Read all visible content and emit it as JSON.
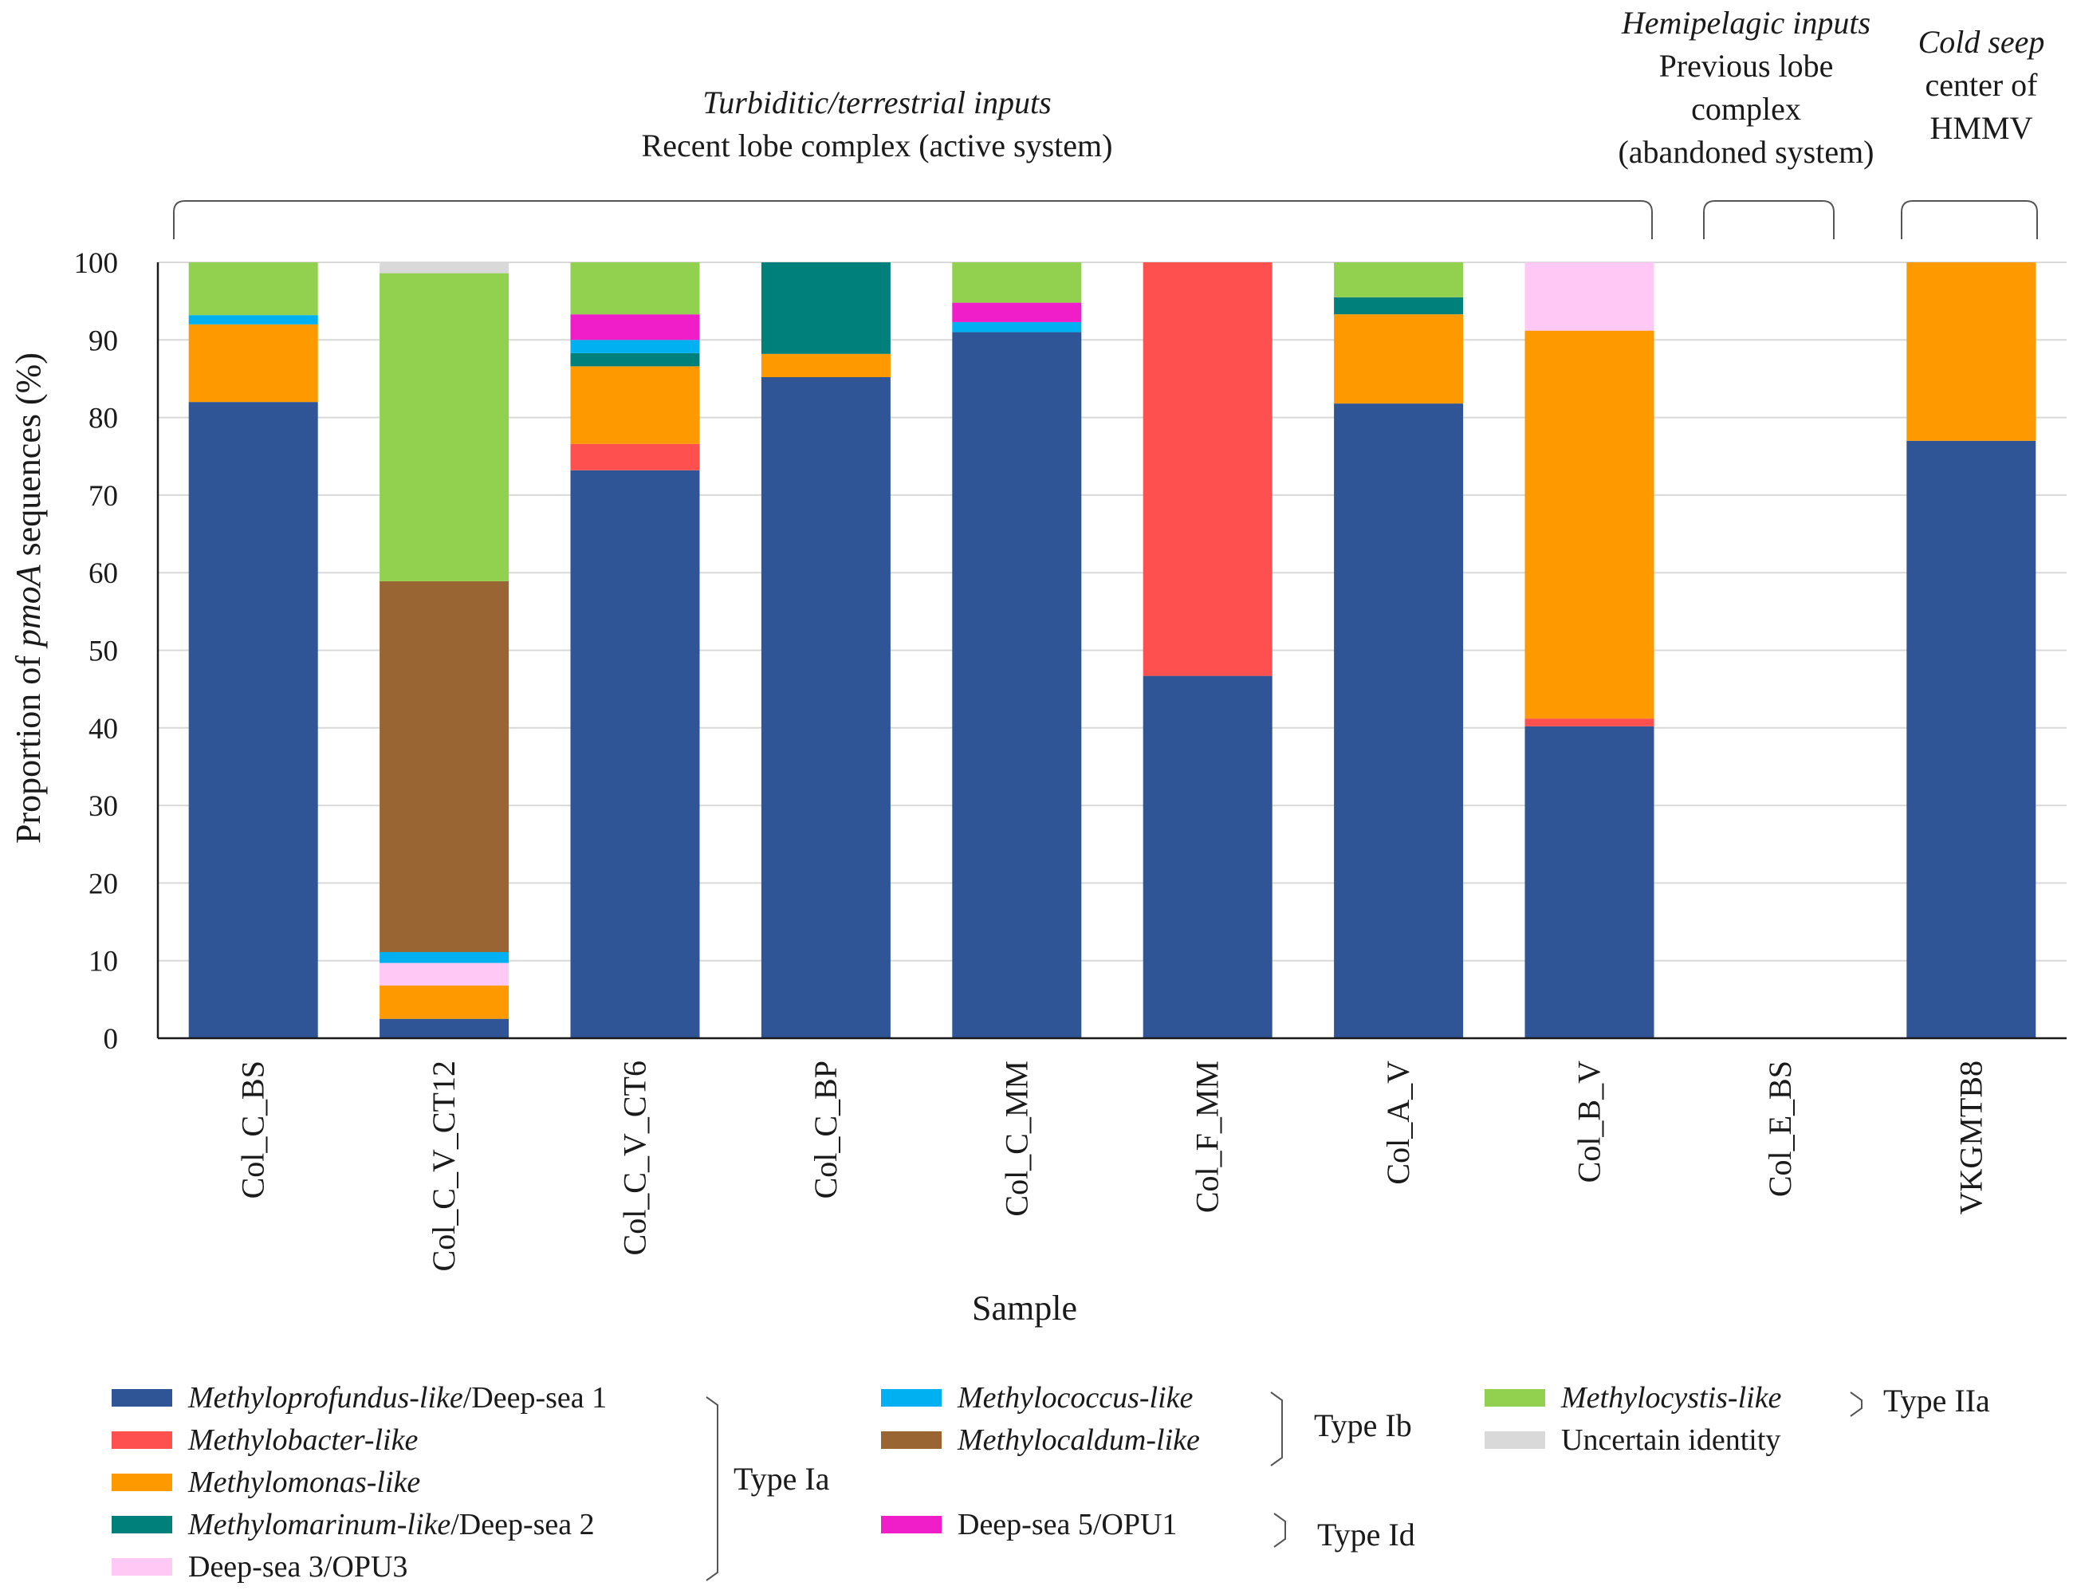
{
  "chart_data": {
    "type": "bar",
    "stacked": true,
    "xlabel": "Sample",
    "ylabel_prefix": "Proportion of ",
    "ylabel_italic": "pmoA",
    "ylabel_suffix": " sequences (%)",
    "ylim": [
      0,
      100
    ],
    "yticks": [
      0,
      10,
      20,
      30,
      40,
      50,
      60,
      70,
      80,
      90,
      100
    ],
    "grid": true,
    "categories": [
      "Col_C_BS",
      "Col_C_V_CT12",
      "Col_C_V_CT6",
      "Col_C_BP",
      "Col_C_MM",
      "Col_F_MM",
      "Col_A_V",
      "Col_B_V",
      "Col_E_BS",
      "VKGMTB8"
    ],
    "series": [
      {
        "name": "Methyloprofundus-like/Deep-sea 1",
        "italic": "Methyloprofundus-like",
        "rest": "/Deep-sea 1",
        "color": "#2f5597",
        "values": [
          82,
          2.5,
          73.2,
          85.2,
          91,
          46.7,
          81.8,
          40.2,
          0,
          77
        ]
      },
      {
        "name": "Methylobacter-like",
        "italic": "Methylobacter-like",
        "rest": "",
        "color": "#ff5050",
        "values": [
          0,
          0,
          3.4,
          0,
          0,
          53.3,
          0,
          1,
          0,
          0
        ]
      },
      {
        "name": "Methylomonas-like",
        "italic": "Methylomonas-like",
        "rest": "",
        "color": "#ff9900",
        "values": [
          10,
          4.3,
          10,
          3,
          0,
          0,
          11.5,
          50,
          0,
          23
        ]
      },
      {
        "name": "Methylomarinum-like/Deep-sea 2",
        "italic": "Methylomarinum-like",
        "rest": "/Deep-sea 2",
        "color": "#00807a",
        "values": [
          0,
          0,
          1.7,
          11.8,
          0,
          0,
          2.2,
          0,
          0,
          0
        ]
      },
      {
        "name": "Deep-sea 3/OPU3",
        "italic": "",
        "rest": "Deep-sea 3/OPU3",
        "color": "#ffc8f5",
        "values": [
          0,
          2.9,
          0,
          0,
          0,
          0,
          0,
          8.8,
          0,
          0
        ]
      },
      {
        "name": "Methylococcus-like",
        "italic": "Methylococcus-like",
        "rest": "",
        "color": "#00b0f0",
        "values": [
          1.2,
          1.4,
          1.7,
          0,
          1.3,
          0,
          0,
          0,
          0,
          0
        ]
      },
      {
        "name": "Methylocaldum-like",
        "italic": "Methylocaldum-like",
        "rest": "",
        "color": "#996633",
        "values": [
          0,
          47.8,
          0,
          0,
          0,
          0,
          0,
          0,
          0,
          0
        ]
      },
      {
        "name": "Deep-sea 5/OPU1",
        "italic": "",
        "rest": "Deep-sea 5/OPU1",
        "color": "#f01ec8",
        "values": [
          0,
          0,
          3.3,
          0,
          2.5,
          0,
          0,
          0,
          0,
          0
        ]
      },
      {
        "name": "Methylocystis-like",
        "italic": "Methylocystis-like",
        "rest": "",
        "color": "#92d050",
        "values": [
          6.8,
          39.7,
          6.7,
          0,
          5.2,
          0,
          4.5,
          0,
          0,
          0
        ]
      },
      {
        "name": "Uncertain identity",
        "italic": "",
        "rest": "Uncertain identity",
        "color": "#d9d9d9",
        "values": [
          0,
          1.4,
          0,
          0,
          0,
          0,
          0,
          0,
          0,
          0
        ]
      }
    ],
    "groups": [
      {
        "italic": "Turbiditic/terrestrial inputs",
        "lines": [
          "Recent lobe complex (active system)"
        ],
        "from": 0,
        "to": 7
      },
      {
        "italic": "Hemipelagic inputs",
        "lines": [
          "Previous lobe",
          "complex",
          "(abandoned system)"
        ],
        "from": 8,
        "to": 8
      },
      {
        "italic": "Cold seep",
        "lines": [
          "center of",
          "HMMV"
        ],
        "from": 9,
        "to": 9
      }
    ],
    "legend_types": {
      "type_ia": "Type Ia",
      "type_ib": "Type Ib",
      "type_id": "Type Id",
      "type_iia": "Type IIa"
    }
  }
}
